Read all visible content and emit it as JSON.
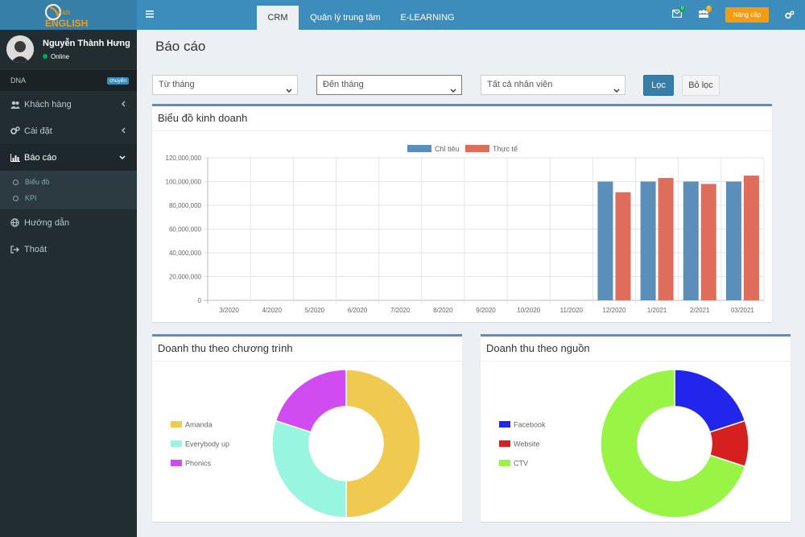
{
  "brand": {
    "logo_text": "ENGLISH",
    "logo_sub": "Kids"
  },
  "user": {
    "name": "Nguyễn Thành Hưng",
    "status": "Online"
  },
  "sidebar": {
    "dna_label": "DNA",
    "dna_badge": "chuyển",
    "items": [
      {
        "label": "Khách hàng",
        "icon": "users-icon"
      },
      {
        "label": "Cài đặt",
        "icon": "cogs-icon"
      },
      {
        "label": "Báo cáo",
        "icon": "bar-chart-icon"
      },
      {
        "label": "Hướng dẫn",
        "icon": "globe-icon"
      },
      {
        "label": "Thoát",
        "icon": "sign-out-icon"
      }
    ],
    "sub_items": [
      {
        "label": "Biểu đồ"
      },
      {
        "label": "KPI"
      }
    ]
  },
  "topbar": {
    "tabs": [
      {
        "label": "CRM"
      },
      {
        "label": "Quản lý trung tâm"
      },
      {
        "label": "E-LEARNING"
      }
    ],
    "mail_count": "0",
    "group_count": "0",
    "upgrade_label": "Nâng cấp"
  },
  "page": {
    "title": "Báo cáo"
  },
  "filters": {
    "from_month": "Từ tháng",
    "to_month": "Đến tháng",
    "staff": "Tất cả nhân viên",
    "filter_btn": "Lọc",
    "clear_btn": "Bỏ lọc"
  },
  "colors": {
    "target": "#5b8fba",
    "actual": "#de6d5b"
  },
  "chart_data": [
    {
      "type": "bar",
      "title": "Biểu đồ kinh doanh",
      "categories": [
        "3/2020",
        "4/2020",
        "5/2020",
        "6/2020",
        "7/2020",
        "8/2020",
        "9/2020",
        "10/2020",
        "11/2020",
        "12/2020",
        "1/2021",
        "2/2021",
        "03/2021"
      ],
      "series": [
        {
          "name": "Chỉ tiêu",
          "color": "#5b8fba",
          "values": [
            0,
            0,
            0,
            0,
            0,
            0,
            0,
            0,
            0,
            100000000,
            100000000,
            100000000,
            100000000
          ]
        },
        {
          "name": "Thực tế",
          "color": "#de6d5b",
          "values": [
            0,
            0,
            0,
            0,
            0,
            0,
            0,
            0,
            0,
            91000000,
            103000000,
            98000000,
            105000000
          ]
        }
      ],
      "yticks": [
        "0",
        "20,000,000",
        "40,000,000",
        "60,000,000",
        "80,000,000",
        "100,000,000",
        "120,000,000"
      ],
      "ylim": [
        0,
        120000000
      ],
      "grid": true,
      "legend": "top"
    },
    {
      "type": "pie",
      "title": "Doanh thu theo chương trình",
      "labels": [
        "Amanda",
        "Everybody up",
        "Phonics"
      ],
      "values": [
        50,
        30,
        20
      ],
      "colors": [
        "#f0c94f",
        "#98f5df",
        "#d14cf0"
      ],
      "legend": "left"
    },
    {
      "type": "pie",
      "title": "Doanh thu theo nguồn",
      "labels": [
        "Facebook",
        "Website",
        "CTV"
      ],
      "values": [
        20,
        10,
        70
      ],
      "colors": [
        "#2225ec",
        "#d62020",
        "#98f546"
      ],
      "legend": "left"
    }
  ]
}
